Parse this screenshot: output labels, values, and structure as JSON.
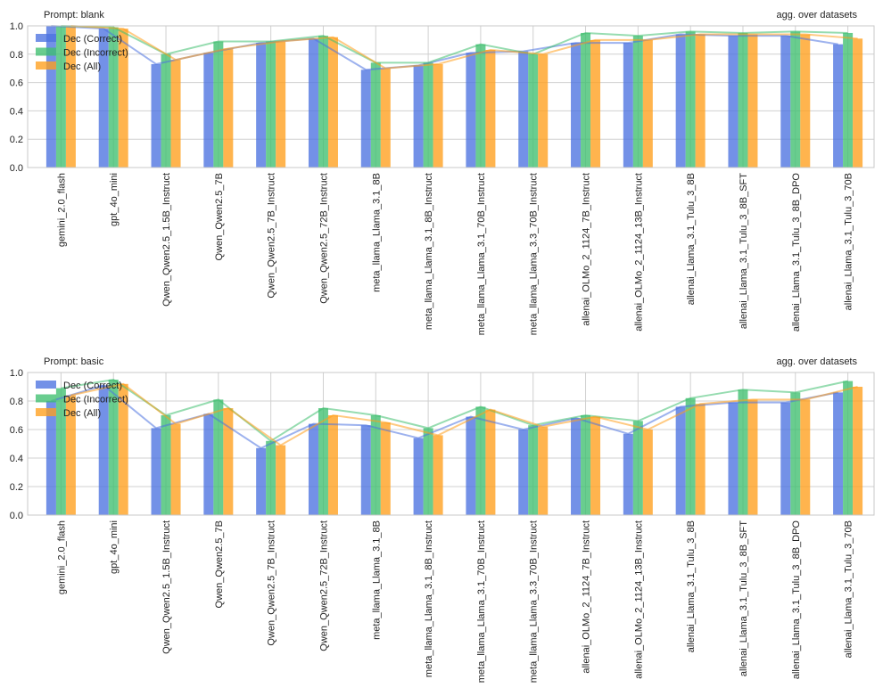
{
  "colors": {
    "correct": "#4c72e0",
    "incorrect": "#3fbf6f",
    "all": "#ff9f1c",
    "grid": "#d0d0d0",
    "frame": "#c8c8c8"
  },
  "chart_data": [
    {
      "type": "bar",
      "title": "Prompt: blank",
      "subtitle": "agg. over datasets",
      "ylim": [
        0,
        1.0
      ],
      "yticks": [
        "0.0",
        "0.2",
        "0.4",
        "0.6",
        "0.8",
        "1.0"
      ],
      "grid": true,
      "legend_position": "top-left",
      "categories": [
        "gemini_2.0_flash",
        "gpt_4o_mini",
        "Qwen_Qwen2.5_1.5B_Instruct",
        "Qwen_Qwen2.5_7B",
        "Qwen_Qwen2.5_7B_Instruct",
        "Qwen_Qwen2.5_72B_Instruct",
        "meta_llama_Llama_3.1_8B",
        "meta_llama_Llama_3.1_8B_Instruct",
        "meta_llama_Llama_3.1_70B_Instruct",
        "meta_llama_Llama_3.3_70B_Instruct",
        "allenai_OLMo_2_1124_7B_Instruct",
        "allenai_OLMo_2_1124_13B_Instruct",
        "allenai_Llama_3.1_Tulu_3_8B",
        "allenai_Llama_3.1_Tulu_3_8B_SFT",
        "allenai_Llama_3.1_Tulu_3_8B_DPO",
        "allenai_Llama_3.1_Tulu_3_70B"
      ],
      "series": [
        {
          "name": "Dec (Correct)",
          "values": [
            1.0,
            0.98,
            0.73,
            0.81,
            0.88,
            0.91,
            0.69,
            0.72,
            0.81,
            0.82,
            0.88,
            0.88,
            0.94,
            0.93,
            0.93,
            0.87
          ]
        },
        {
          "name": "Dec (Incorrect)",
          "values": [
            1.0,
            0.99,
            0.8,
            0.89,
            0.89,
            0.93,
            0.74,
            0.74,
            0.87,
            0.8,
            0.95,
            0.93,
            0.96,
            0.95,
            0.96,
            0.95
          ]
        },
        {
          "name": "Dec (All)",
          "values": [
            1.0,
            0.98,
            0.76,
            0.84,
            0.89,
            0.92,
            0.7,
            0.73,
            0.83,
            0.8,
            0.9,
            0.9,
            0.94,
            0.94,
            0.94,
            0.91
          ]
        }
      ]
    },
    {
      "type": "bar",
      "title": "Prompt: basic",
      "subtitle": "agg. over datasets",
      "ylim": [
        0,
        1.0
      ],
      "yticks": [
        "0.0",
        "0.2",
        "0.4",
        "0.6",
        "0.8",
        "1.0"
      ],
      "grid": true,
      "legend_position": "top-left",
      "categories": [
        "gemini_2.0_flash",
        "gpt_4o_mini",
        "Qwen_Qwen2.5_1.5B_Instruct",
        "Qwen_Qwen2.5_7B",
        "Qwen_Qwen2.5_7B_Instruct",
        "Qwen_Qwen2.5_72B_Instruct",
        "meta_llama_Llama_3.1_8B",
        "meta_llama_Llama_3.1_8B_Instruct",
        "meta_llama_Llama_3.1_70B_Instruct",
        "meta_llama_Llama_3.3_70B_Instruct",
        "allenai_OLMo_2_1124_7B_Instruct",
        "allenai_OLMo_2_1124_13B_Instruct",
        "allenai_Llama_3.1_Tulu_3_8B",
        "allenai_Llama_3.1_Tulu_3_8B_SFT",
        "allenai_Llama_3.1_Tulu_3_8B_DPO",
        "allenai_Llama_3.1_Tulu_3_70B"
      ],
      "series": [
        {
          "name": "Dec (Correct)",
          "values": [
            0.8,
            0.91,
            0.61,
            0.71,
            0.47,
            0.64,
            0.63,
            0.54,
            0.69,
            0.6,
            0.68,
            0.57,
            0.76,
            0.79,
            0.79,
            0.86
          ]
        },
        {
          "name": "Dec (Incorrect)",
          "values": [
            0.89,
            0.95,
            0.7,
            0.81,
            0.52,
            0.75,
            0.7,
            0.61,
            0.76,
            0.63,
            0.7,
            0.66,
            0.82,
            0.88,
            0.86,
            0.94
          ]
        },
        {
          "name": "Dec (All)",
          "values": [
            0.84,
            0.92,
            0.64,
            0.75,
            0.49,
            0.7,
            0.65,
            0.56,
            0.74,
            0.62,
            0.69,
            0.6,
            0.78,
            0.81,
            0.81,
            0.9
          ]
        }
      ]
    }
  ]
}
